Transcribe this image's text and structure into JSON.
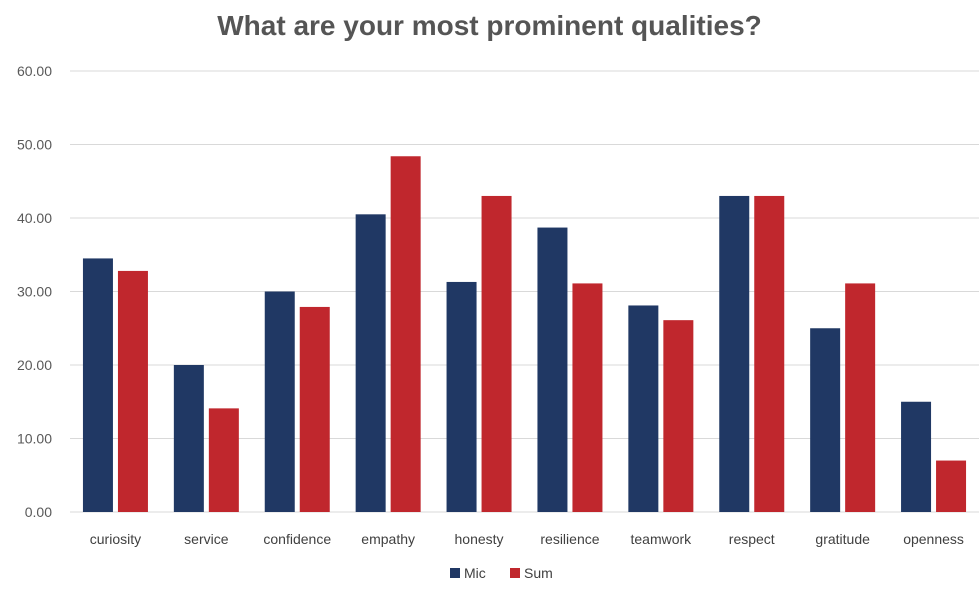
{
  "chart_data": {
    "type": "bar",
    "title": "What are your most prominent qualities?",
    "xlabel": "",
    "ylabel": "",
    "categories": [
      "curiosity",
      "service",
      "confidence",
      "empathy",
      "honesty",
      "resilience",
      "teamwork",
      "respect",
      "gratitude",
      "openness"
    ],
    "series": [
      {
        "name": "Mic",
        "color": "#203864",
        "values": [
          34.5,
          20.0,
          30.0,
          40.5,
          31.3,
          38.7,
          28.1,
          43.0,
          25.0,
          15.0
        ]
      },
      {
        "name": "Sum",
        "color": "#C0272D",
        "values": [
          32.8,
          14.1,
          27.9,
          48.4,
          43.0,
          31.1,
          26.1,
          43.0,
          31.1,
          7.0
        ]
      }
    ],
    "ylim": [
      0,
      60
    ],
    "yticks": [
      "0.00",
      "10.00",
      "20.00",
      "30.00",
      "40.00",
      "50.00",
      "60.00"
    ],
    "grid": true,
    "legend_position": "bottom"
  }
}
